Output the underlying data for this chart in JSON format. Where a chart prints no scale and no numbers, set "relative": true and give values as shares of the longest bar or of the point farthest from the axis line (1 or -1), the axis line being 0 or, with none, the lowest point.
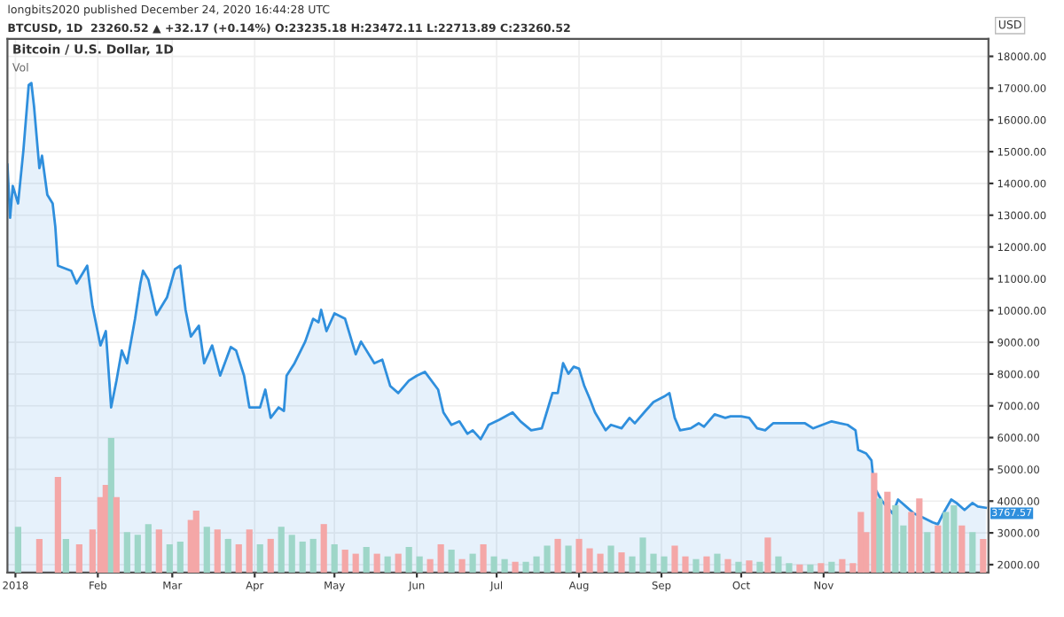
{
  "chart_data": [
    {
      "type": "area",
      "title": "Bitcoin / U.S. Dollar, 1D",
      "subtitle": "Vol",
      "ylabel": "USD",
      "annotations": [
        "longbits2020 published December 24, 2020 16:44:28 UTC",
        "BTCUSD, 1D  23260.52 ▲ +32.17 (+0.14%) O:23235.18 H:23472.11 L:22713.89 C:23260.52",
        {
          "text": "3767.57",
          "x": "2019-01-01",
          "y": 3767.57
        }
      ],
      "x": [
        "2017-12-29",
        "2017-12-30",
        "2017-12-31",
        "2018-01-02",
        "2018-01-04",
        "2018-01-06",
        "2018-01-07",
        "2018-01-08",
        "2018-01-10",
        "2018-01-11",
        "2018-01-13",
        "2018-01-15",
        "2018-01-16",
        "2018-01-17",
        "2018-01-22",
        "2018-01-24",
        "2018-01-28",
        "2018-01-30",
        "2018-02-02",
        "2018-02-04",
        "2018-02-06",
        "2018-02-08",
        "2018-02-10",
        "2018-02-12",
        "2018-02-15",
        "2018-02-17",
        "2018-02-18",
        "2018-02-20",
        "2018-02-23",
        "2018-02-27",
        "2018-03-02",
        "2018-03-04",
        "2018-03-06",
        "2018-03-08",
        "2018-03-11",
        "2018-03-13",
        "2018-03-16",
        "2018-03-19",
        "2018-03-23",
        "2018-03-25",
        "2018-03-28",
        "2018-03-30",
        "2018-04-03",
        "2018-04-05",
        "2018-04-07",
        "2018-04-10",
        "2018-04-12",
        "2018-04-13",
        "2018-04-16",
        "2018-04-20",
        "2018-04-23",
        "2018-04-25",
        "2018-04-26",
        "2018-04-28",
        "2018-05-01",
        "2018-05-05",
        "2018-05-09",
        "2018-05-11",
        "2018-05-16",
        "2018-05-19",
        "2018-05-22",
        "2018-05-25",
        "2018-05-29",
        "2018-06-01",
        "2018-06-04",
        "2018-06-09",
        "2018-06-11",
        "2018-06-14",
        "2018-06-17",
        "2018-06-20",
        "2018-06-22",
        "2018-06-25",
        "2018-06-28",
        "2018-07-02",
        "2018-07-07",
        "2018-07-10",
        "2018-07-14",
        "2018-07-18",
        "2018-07-20",
        "2018-07-22",
        "2018-07-24",
        "2018-07-26",
        "2018-07-28",
        "2018-07-30",
        "2018-08-01",
        "2018-08-03",
        "2018-08-05",
        "2018-08-07",
        "2018-08-09",
        "2018-08-11",
        "2018-08-13",
        "2018-08-17",
        "2018-08-20",
        "2018-08-22",
        "2018-08-26",
        "2018-08-29",
        "2018-09-02",
        "2018-09-04",
        "2018-09-06",
        "2018-09-08",
        "2018-09-12",
        "2018-09-15",
        "2018-09-17",
        "2018-09-21",
        "2018-09-25",
        "2018-09-27",
        "2018-10-01",
        "2018-10-04",
        "2018-10-07",
        "2018-10-10",
        "2018-10-13",
        "2018-10-19",
        "2018-10-25",
        "2018-10-28",
        "2018-11-04",
        "2018-11-07",
        "2018-11-10",
        "2018-11-13",
        "2018-11-14",
        "2018-11-17",
        "2018-11-18",
        "2018-11-19",
        "2018-11-20",
        "2018-11-23",
        "2018-11-27",
        "2018-11-29",
        "2018-12-02",
        "2018-12-05",
        "2018-12-08",
        "2018-12-12",
        "2018-12-14",
        "2018-12-16",
        "2018-12-19",
        "2018-12-21",
        "2018-12-24",
        "2018-12-27",
        "2018-12-29",
        "2019-01-01"
      ],
      "series": [
        {
          "color": "#2f8fdd",
          "values": [
            14590,
            12920,
            13920,
            13370,
            15040,
            17100,
            17160,
            16430,
            14480,
            14870,
            13640,
            13370,
            12640,
            11410,
            11250,
            10850,
            11410,
            10130,
            8900,
            9350,
            6950,
            7790,
            8740,
            8340,
            9740,
            10850,
            11250,
            10970,
            9860,
            10410,
            11300,
            11410,
            10020,
            9180,
            9520,
            8340,
            8900,
            7950,
            8850,
            8740,
            7950,
            6950,
            6950,
            7510,
            6620,
            6950,
            6840,
            7950,
            8340,
            9020,
            9740,
            9630,
            10020,
            9350,
            9910,
            9740,
            8620,
            9020,
            8340,
            8450,
            7620,
            7400,
            7790,
            7950,
            8070,
            7510,
            6790,
            6400,
            6510,
            6120,
            6230,
            5950,
            6400,
            6560,
            6790,
            6510,
            6230,
            6290,
            6840,
            7400,
            7400,
            8340,
            8010,
            8230,
            8170,
            7620,
            7230,
            6790,
            6510,
            6230,
            6400,
            6290,
            6620,
            6450,
            6840,
            7120,
            7290,
            7400,
            6620,
            6230,
            6290,
            6450,
            6340,
            6730,
            6620,
            6670,
            6670,
            6620,
            6290,
            6230,
            6450,
            6450,
            6450,
            6290,
            6510,
            6450,
            6400,
            6230,
            5610,
            5500,
            5390,
            5280,
            4440,
            4000,
            3610,
            4050,
            3830,
            3610,
            3500,
            3330,
            3270,
            3610,
            4050,
            3940,
            3720,
            3940,
            3830,
            3790
          ]
        }
      ],
      "xlim": [
        "2017-12-29",
        "2019-01-02"
      ],
      "xticks": [
        {
          "value": "2018-01-01",
          "label": "2018"
        },
        {
          "value": "2018-02-01",
          "label": "Feb"
        },
        {
          "value": "2018-03-01",
          "label": "Mar"
        },
        {
          "value": "2018-04-01",
          "label": "Apr"
        },
        {
          "value": "2018-05-01",
          "label": "May"
        },
        {
          "value": "2018-06-01",
          "label": "Jun"
        },
        {
          "value": "2018-07-01",
          "label": "Jul"
        },
        {
          "value": "2018-08-01",
          "label": "Aug"
        },
        {
          "value": "2018-09-01",
          "label": "Sep"
        },
        {
          "value": "2018-10-01",
          "label": "Oct"
        },
        {
          "value": "2018-11-01",
          "label": "Nov"
        }
      ],
      "ylim": [
        1750,
        18550
      ],
      "yticks": [
        {
          "value": 2000,
          "label": "2000.00"
        },
        {
          "value": 3000,
          "label": "3000.00"
        },
        {
          "value": 4000,
          "label": "4000.00"
        },
        {
          "value": 5000,
          "label": "5000.00"
        },
        {
          "value": 6000,
          "label": "6000.00"
        },
        {
          "value": 7000,
          "label": "7000.00"
        },
        {
          "value": 8000,
          "label": "8000.00"
        },
        {
          "value": 9000,
          "label": "9000.00"
        },
        {
          "value": 10000,
          "label": "10000.00"
        },
        {
          "value": 11000,
          "label": "11000.00"
        },
        {
          "value": 12000,
          "label": "12000.00"
        },
        {
          "value": 13000,
          "label": "13000.00"
        },
        {
          "value": 14000,
          "label": "14000.00"
        },
        {
          "value": 15000,
          "label": "15000.00"
        },
        {
          "value": 16000,
          "label": "16000.00"
        },
        {
          "value": 17000,
          "label": "17000.00"
        },
        {
          "value": 18000,
          "label": "18000.00"
        }
      ],
      "grid": true
    },
    {
      "type": "bar",
      "relative": true,
      "xlim": [
        "2017-12-29",
        "2019-01-02"
      ],
      "x": [
        "2018-01-02",
        "2018-01-10",
        "2018-01-17",
        "2018-01-20",
        "2018-01-25",
        "2018-01-30",
        "2018-02-02",
        "2018-02-04",
        "2018-02-06",
        "2018-02-08",
        "2018-02-12",
        "2018-02-16",
        "2018-02-20",
        "2018-02-24",
        "2018-02-28",
        "2018-03-04",
        "2018-03-08",
        "2018-03-10",
        "2018-03-14",
        "2018-03-18",
        "2018-03-22",
        "2018-03-26",
        "2018-03-30",
        "2018-04-03",
        "2018-04-07",
        "2018-04-11",
        "2018-04-15",
        "2018-04-19",
        "2018-04-23",
        "2018-04-27",
        "2018-05-01",
        "2018-05-05",
        "2018-05-09",
        "2018-05-13",
        "2018-05-17",
        "2018-05-21",
        "2018-05-25",
        "2018-05-29",
        "2018-06-02",
        "2018-06-06",
        "2018-06-10",
        "2018-06-14",
        "2018-06-18",
        "2018-06-22",
        "2018-06-26",
        "2018-06-30",
        "2018-07-04",
        "2018-07-08",
        "2018-07-12",
        "2018-07-16",
        "2018-07-20",
        "2018-07-24",
        "2018-07-28",
        "2018-08-01",
        "2018-08-05",
        "2018-08-09",
        "2018-08-13",
        "2018-08-17",
        "2018-08-21",
        "2018-08-25",
        "2018-08-29",
        "2018-09-02",
        "2018-09-06",
        "2018-09-10",
        "2018-09-14",
        "2018-09-18",
        "2018-09-22",
        "2018-09-26",
        "2018-09-30",
        "2018-10-04",
        "2018-10-08",
        "2018-10-11",
        "2018-10-15",
        "2018-10-19",
        "2018-10-23",
        "2018-10-27",
        "2018-10-31",
        "2018-11-04",
        "2018-11-08",
        "2018-11-12",
        "2018-11-15",
        "2018-11-17",
        "2018-11-20",
        "2018-11-22",
        "2018-11-25",
        "2018-11-28",
        "2018-12-01",
        "2018-12-04",
        "2018-12-07",
        "2018-12-10",
        "2018-12-14",
        "2018-12-17",
        "2018-12-20",
        "2018-12-23",
        "2018-12-27",
        "2018-12-31"
      ],
      "values": [
        0.34,
        0.25,
        0.71,
        0.25,
        0.21,
        0.32,
        0.56,
        0.65,
        1,
        0.56,
        0.3,
        0.28,
        0.36,
        0.32,
        0.21,
        0.23,
        0.39,
        0.46,
        0.34,
        0.32,
        0.25,
        0.21,
        0.32,
        0.21,
        0.25,
        0.34,
        0.28,
        0.23,
        0.25,
        0.36,
        0.21,
        0.17,
        0.14,
        0.19,
        0.14,
        0.12,
        0.14,
        0.19,
        0.12,
        0.1,
        0.21,
        0.17,
        0.1,
        0.14,
        0.21,
        0.12,
        0.1,
        0.08,
        0.08,
        0.12,
        0.2,
        0.25,
        0.2,
        0.25,
        0.18,
        0.14,
        0.2,
        0.15,
        0.12,
        0.26,
        0.14,
        0.12,
        0.2,
        0.12,
        0.1,
        0.12,
        0.14,
        0.1,
        0.08,
        0.09,
        0.08,
        0.26,
        0.12,
        0.07,
        0.06,
        0.06,
        0.07,
        0.08,
        0.1,
        0.07,
        0.45,
        0.3,
        0.74,
        0.55,
        0.6,
        0.5,
        0.35,
        0.45,
        0.55,
        0.3,
        0.35,
        0.45,
        0.5,
        0.35,
        0.3,
        0.25
      ],
      "colors": [
        "#9ed6c8",
        "#f4a7a7",
        "#f4a7a7",
        "#9ed6c8",
        "#f4a7a7",
        "#f4a7a7",
        "#f4a7a7",
        "#f4a7a7",
        "#9ed6c8",
        "#f4a7a7",
        "#9ed6c8",
        "#9ed6c8",
        "#9ed6c8",
        "#f4a7a7",
        "#9ed6c8",
        "#9ed6c8",
        "#f4a7a7",
        "#f4a7a7",
        "#9ed6c8",
        "#f4a7a7",
        "#9ed6c8",
        "#f4a7a7",
        "#f4a7a7",
        "#9ed6c8",
        "#f4a7a7",
        "#9ed6c8",
        "#9ed6c8",
        "#9ed6c8",
        "#9ed6c8",
        "#f4a7a7",
        "#9ed6c8",
        "#f4a7a7",
        "#f4a7a7",
        "#9ed6c8",
        "#f4a7a7",
        "#9ed6c8",
        "#f4a7a7",
        "#9ed6c8",
        "#9ed6c8",
        "#f4a7a7",
        "#f4a7a7",
        "#9ed6c8",
        "#f4a7a7",
        "#9ed6c8",
        "#f4a7a7",
        "#9ed6c8",
        "#9ed6c8",
        "#f4a7a7",
        "#9ed6c8",
        "#9ed6c8",
        "#9ed6c8",
        "#f4a7a7",
        "#9ed6c8",
        "#f4a7a7",
        "#f4a7a7",
        "#f4a7a7",
        "#9ed6c8",
        "#f4a7a7",
        "#9ed6c8",
        "#9ed6c8",
        "#9ed6c8",
        "#9ed6c8",
        "#f4a7a7",
        "#f4a7a7",
        "#9ed6c8",
        "#f4a7a7",
        "#9ed6c8",
        "#f4a7a7",
        "#9ed6c8",
        "#f4a7a7",
        "#9ed6c8",
        "#f4a7a7",
        "#9ed6c8",
        "#9ed6c8",
        "#f4a7a7",
        "#9ed6c8",
        "#f4a7a7",
        "#9ed6c8",
        "#f4a7a7",
        "#f4a7a7",
        "#f4a7a7",
        "#f4a7a7",
        "#f4a7a7",
        "#9ed6c8",
        "#f4a7a7",
        "#9ed6c8",
        "#9ed6c8",
        "#f4a7a7",
        "#f4a7a7",
        "#9ed6c8",
        "#f4a7a7",
        "#9ed6c8",
        "#9ed6c8",
        "#f4a7a7",
        "#9ed6c8",
        "#f4a7a7"
      ]
    }
  ]
}
